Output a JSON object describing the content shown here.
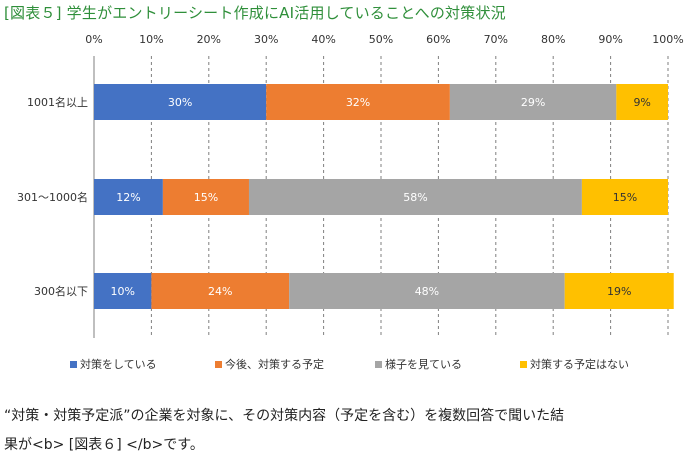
{
  "title": "[図表５] 学生がエントリーシート作成にAI活用していることへの対策状況",
  "chart_data": {
    "type": "bar",
    "orientation": "horizontal",
    "stacked": true,
    "categories": [
      "1001名以上",
      "301～1000名",
      "300名以下"
    ],
    "x_ticks": [
      "0%",
      "10%",
      "20%",
      "30%",
      "40%",
      "50%",
      "60%",
      "70%",
      "80%",
      "90%",
      "100%"
    ],
    "xlim": [
      0,
      100
    ],
    "grid": true,
    "legend_position": "bottom",
    "series": [
      {
        "name": "対策をしている",
        "color": "#4472c4",
        "values": [
          30,
          12,
          10
        ],
        "labels": [
          "30%",
          "12%",
          "10%"
        ]
      },
      {
        "name": "今後、対策する予定",
        "color": "#ed7d31",
        "values": [
          32,
          15,
          24
        ],
        "labels": [
          "32%",
          "15%",
          "24%"
        ]
      },
      {
        "name": "様子を見ている",
        "color": "#a5a5a5",
        "values": [
          29,
          58,
          48
        ],
        "labels": [
          "29%",
          "58%",
          "48%"
        ]
      },
      {
        "name": "対策する予定はない",
        "color": "#ffc000",
        "values": [
          9,
          15,
          19
        ],
        "labels": [
          "9%",
          "15%",
          "19%"
        ]
      }
    ]
  },
  "note": {
    "line1": "“対策・対策予定派”の企業を対象に、その対策内容（予定を含む）を複数回答で聞いた結",
    "line2": "果が<b> [図表６] </b>です。"
  }
}
